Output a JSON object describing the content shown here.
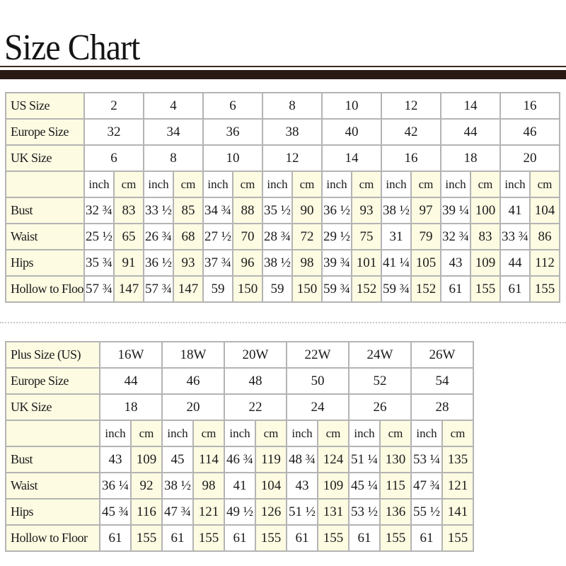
{
  "title": "Size Chart",
  "unit_labels": {
    "inch": "inch",
    "cm": "cm"
  },
  "standard": {
    "header_rows": [
      {
        "label": "US Size",
        "values": [
          "2",
          "4",
          "6",
          "8",
          "10",
          "12",
          "14",
          "16"
        ]
      },
      {
        "label": "Europe Size",
        "values": [
          "32",
          "34",
          "36",
          "38",
          "40",
          "42",
          "44",
          "46"
        ]
      },
      {
        "label": "UK Size",
        "values": [
          "6",
          "8",
          "10",
          "12",
          "14",
          "16",
          "18",
          "20"
        ]
      }
    ],
    "measure_rows": [
      {
        "label": "Bust",
        "values": [
          [
            "32 ¾",
            "83"
          ],
          [
            "33 ½",
            "85"
          ],
          [
            "34 ¾",
            "88"
          ],
          [
            "35 ½",
            "90"
          ],
          [
            "36 ½",
            "93"
          ],
          [
            "38 ½",
            "97"
          ],
          [
            "39 ¼",
            "100"
          ],
          [
            "41",
            "104"
          ]
        ]
      },
      {
        "label": "Waist",
        "values": [
          [
            "25 ½",
            "65"
          ],
          [
            "26 ¾",
            "68"
          ],
          [
            "27 ½",
            "70"
          ],
          [
            "28 ¾",
            "72"
          ],
          [
            "29 ½",
            "75"
          ],
          [
            "31",
            "79"
          ],
          [
            "32 ¾",
            "83"
          ],
          [
            "33 ¾",
            "86"
          ]
        ]
      },
      {
        "label": "Hips",
        "values": [
          [
            "35 ¾",
            "91"
          ],
          [
            "36 ½",
            "93"
          ],
          [
            "37 ¾",
            "96"
          ],
          [
            "38 ½",
            "98"
          ],
          [
            "39 ¾",
            "101"
          ],
          [
            "41 ¼",
            "105"
          ],
          [
            "43",
            "109"
          ],
          [
            "44",
            "112"
          ]
        ]
      },
      {
        "label": "Hollow to Floor",
        "values": [
          [
            "57 ¾",
            "147"
          ],
          [
            "57 ¾",
            "147"
          ],
          [
            "59",
            "150"
          ],
          [
            "59",
            "150"
          ],
          [
            "59 ¾",
            "152"
          ],
          [
            "59 ¾",
            "152"
          ],
          [
            "61",
            "155"
          ],
          [
            "61",
            "155"
          ]
        ]
      }
    ]
  },
  "plus": {
    "header_rows": [
      {
        "label": "Plus Size (US)",
        "values": [
          "16W",
          "18W",
          "20W",
          "22W",
          "24W",
          "26W"
        ]
      },
      {
        "label": "Europe Size",
        "values": [
          "44",
          "46",
          "48",
          "50",
          "52",
          "54"
        ]
      },
      {
        "label": "UK Size",
        "values": [
          "18",
          "20",
          "22",
          "24",
          "26",
          "28"
        ]
      }
    ],
    "measure_rows": [
      {
        "label": "Bust",
        "values": [
          [
            "43",
            "109"
          ],
          [
            "45",
            "114"
          ],
          [
            "46 ¾",
            "119"
          ],
          [
            "48 ¾",
            "124"
          ],
          [
            "51 ¼",
            "130"
          ],
          [
            "53 ¼",
            "135"
          ]
        ]
      },
      {
        "label": "Waist",
        "values": [
          [
            "36 ¼",
            "92"
          ],
          [
            "38 ½",
            "98"
          ],
          [
            "41",
            "104"
          ],
          [
            "43",
            "109"
          ],
          [
            "45 ¼",
            "115"
          ],
          [
            "47 ¾",
            "121"
          ]
        ]
      },
      {
        "label": "Hips",
        "values": [
          [
            "45 ¾",
            "116"
          ],
          [
            "47 ¾",
            "121"
          ],
          [
            "49 ½",
            "126"
          ],
          [
            "51 ½",
            "131"
          ],
          [
            "53 ½",
            "136"
          ],
          [
            "55 ½",
            "141"
          ]
        ]
      },
      {
        "label": "Hollow to Floor",
        "values": [
          [
            "61",
            "155"
          ],
          [
            "61",
            "155"
          ],
          [
            "61",
            "155"
          ],
          [
            "61",
            "155"
          ],
          [
            "61",
            "155"
          ],
          [
            "61",
            "155"
          ]
        ]
      }
    ]
  },
  "colors": {
    "header_rule": "#2a1a14",
    "label_cell": "#fdfbe2",
    "grid": "#b4b4b4"
  }
}
